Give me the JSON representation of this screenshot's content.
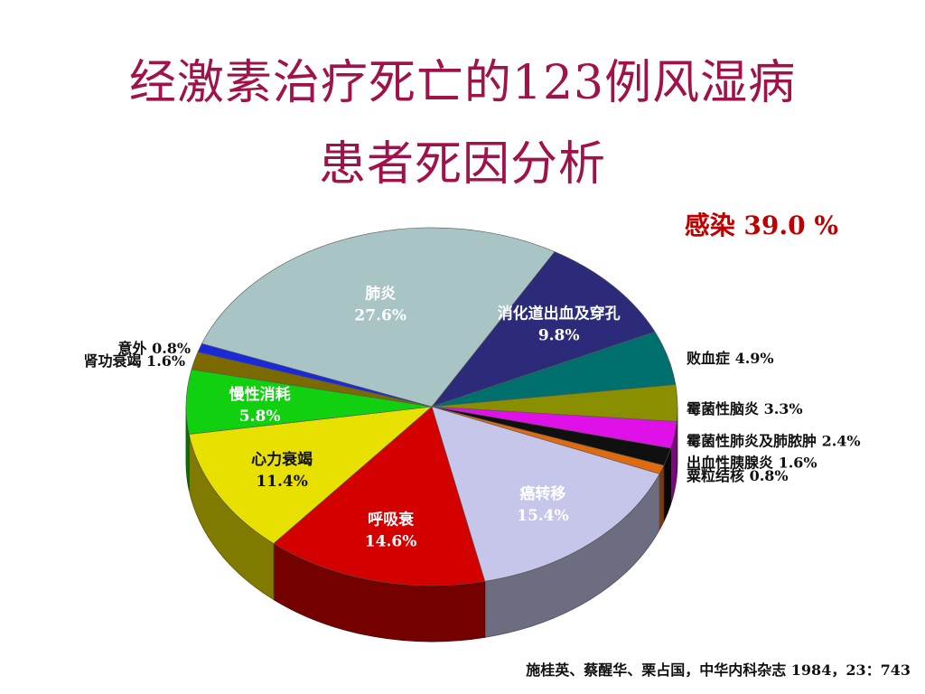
{
  "title_line1": "经激素治疗死亡的123例风湿病",
  "title_line2": "患者死因分析",
  "infection_note": "感染  39.0 %",
  "citation": "施桂英、蔡醒华、栗占国，中华内科杂志 1984，23：743",
  "chart_data": {
    "type": "pie",
    "title": "经激素治疗死亡的123例风湿病患者死因分析",
    "unit": "%",
    "slices": [
      {
        "name": "消化道出血及穿孔",
        "value": 9.8,
        "label": "9.8%",
        "color": "#2b2b7a",
        "label_pos": "inside",
        "label_color": "#ffffff"
      },
      {
        "name": "败血症",
        "value": 4.9,
        "label": "4.9%",
        "color": "#00706e",
        "label_pos": "outside",
        "label_color": "#111111"
      },
      {
        "name": "霉菌性脑炎",
        "value": 3.3,
        "label": "3.3%",
        "color": "#8a8f00",
        "label_pos": "outside",
        "label_color": "#111111"
      },
      {
        "name": "霉菌性肺炎及肺脓肿",
        "value": 2.4,
        "label": "2.4%",
        "color": "#e010e8",
        "label_pos": "outside",
        "label_color": "#111111"
      },
      {
        "name": "出血性胰腺炎",
        "value": 1.6,
        "label": "1.6%",
        "color": "#101010",
        "label_pos": "outside",
        "label_color": "#111111"
      },
      {
        "name": "粟粒结核",
        "value": 0.8,
        "label": "0.8%",
        "color": "#e06a10",
        "label_pos": "outside",
        "label_color": "#111111"
      },
      {
        "name": "癌转移",
        "value": 15.4,
        "label": "15.4%",
        "color": "#c6c6ea",
        "label_pos": "inside",
        "label_color": "#ffffff"
      },
      {
        "name": "呼吸衰",
        "value": 14.6,
        "label": "14.6%",
        "color": "#d40000",
        "label_pos": "inside",
        "label_color": "#ffffff"
      },
      {
        "name": "心力衰竭",
        "value": 11.4,
        "label": "11.4%",
        "color": "#e8e000",
        "label_pos": "inside",
        "label_color": "#111111"
      },
      {
        "name": "慢性消耗",
        "value": 5.8,
        "label": "5.8%",
        "color": "#10d010",
        "label_pos": "inside",
        "label_color": "#ffffff"
      },
      {
        "name": "肾功衰竭",
        "value": 1.6,
        "label": "1.6%",
        "color": "#7a6a00",
        "label_pos": "outside",
        "label_color": "#111111"
      },
      {
        "name": "意外",
        "value": 0.8,
        "label": "0.8%",
        "color": "#1a2ad8",
        "label_pos": "outside",
        "label_color": "#111111"
      },
      {
        "name": "肺炎",
        "value": 27.6,
        "label": "27.6%",
        "color": "#a8c4c4",
        "label_pos": "inside",
        "label_color": "#ffffff"
      }
    ]
  }
}
